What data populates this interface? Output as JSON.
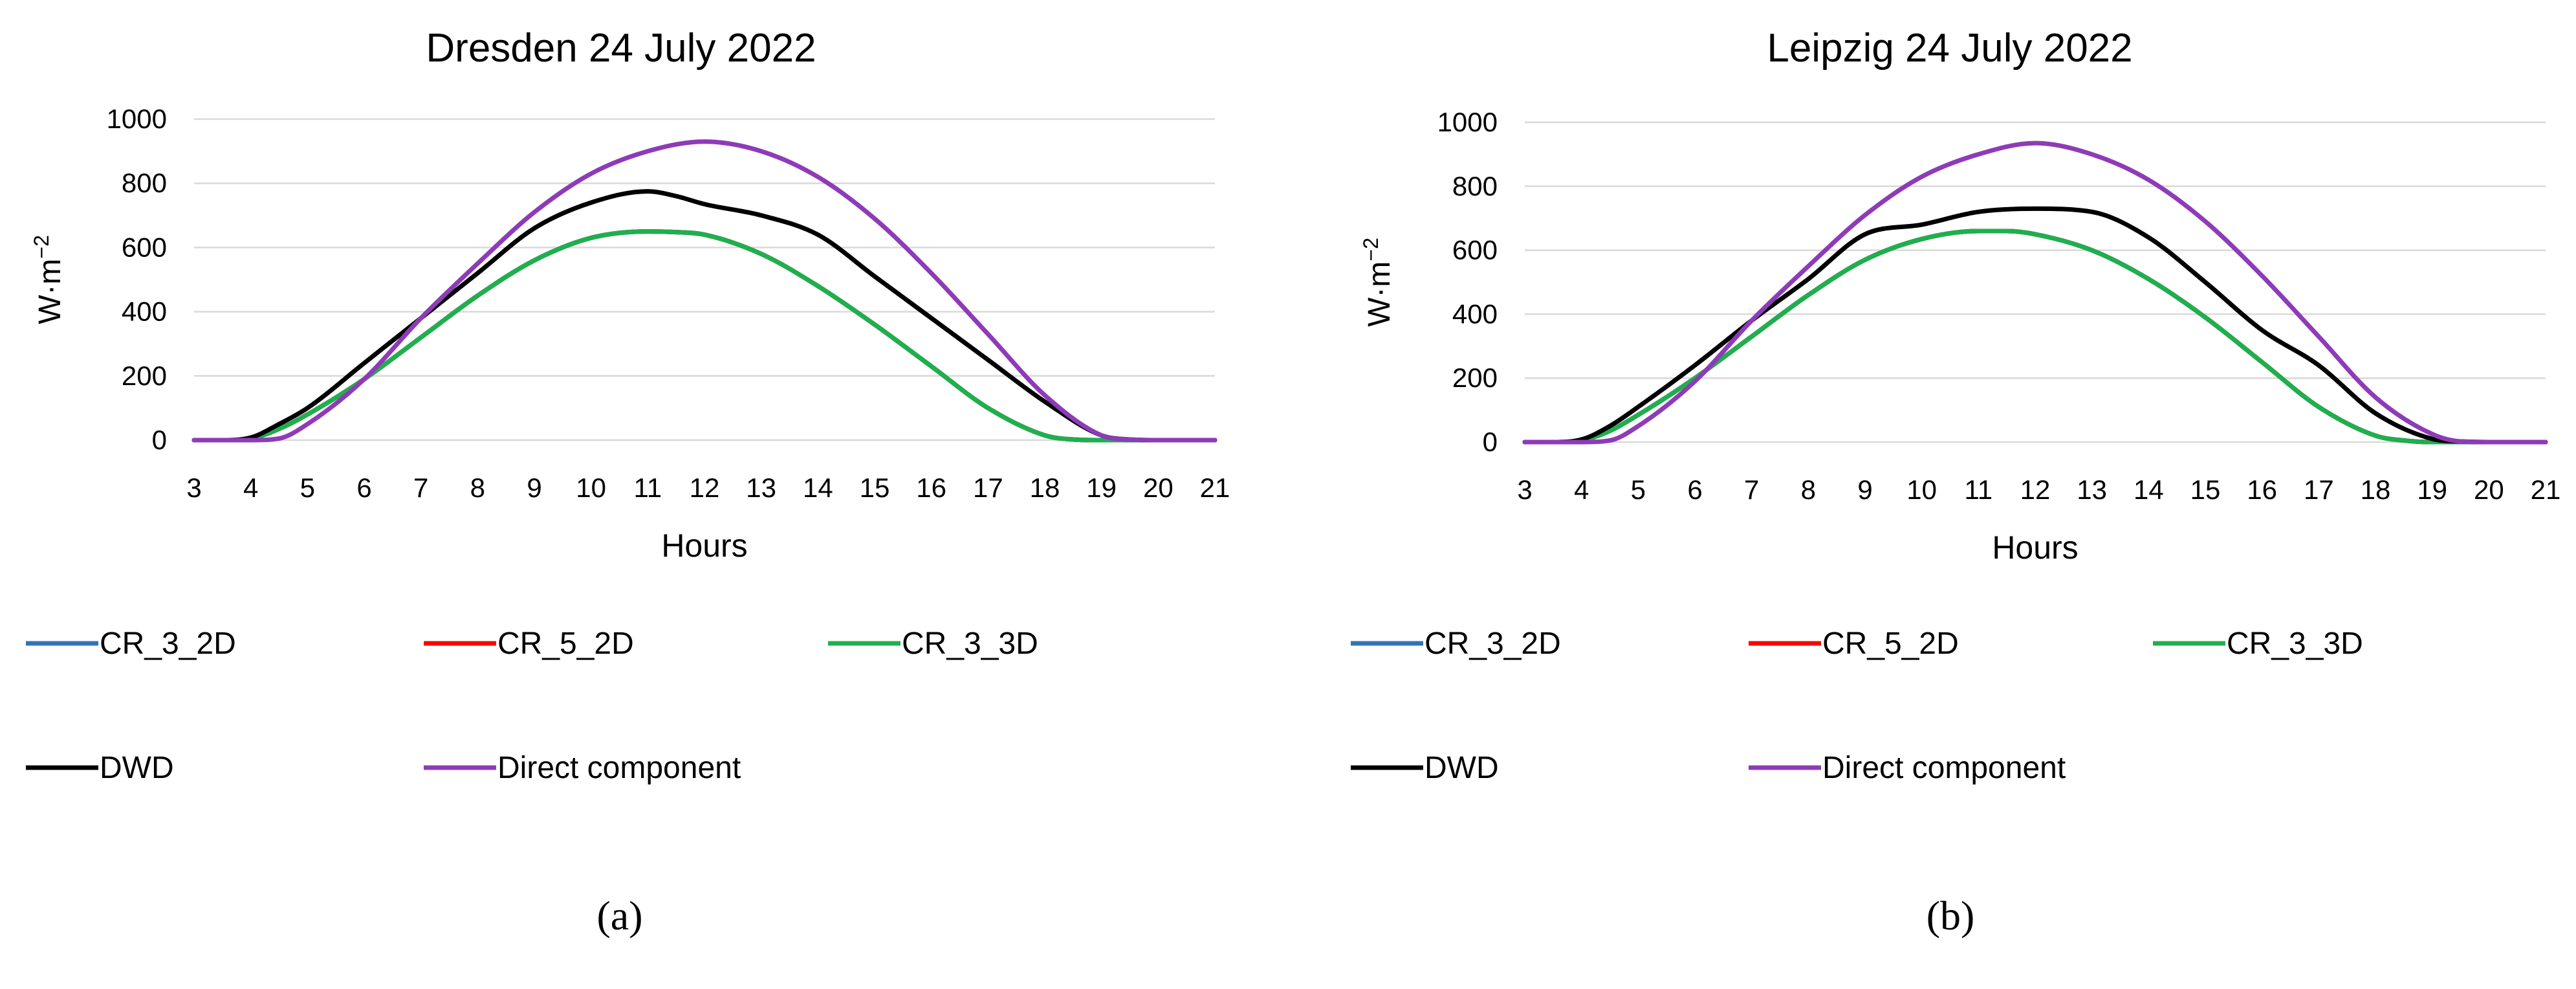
{
  "figure": {
    "captions": [
      "(a)",
      "(b)"
    ]
  },
  "colors": {
    "CR_3_2D": "#2E75B6",
    "CR_5_2D": "#FF0000",
    "CR_3_3D": "#1DB04E",
    "DWD": "#000000",
    "Direct component": "#8E3BB8",
    "grid": "#D9D9D9"
  },
  "chart_data": [
    {
      "type": "line",
      "title": "Dresden 24 July 2022",
      "xlabel": "Hours",
      "ylabel": "W·m",
      "ylabel_sup": "−2",
      "xlim": [
        3,
        21
      ],
      "ylim": [
        0,
        1000
      ],
      "xticks": [
        3,
        4,
        5,
        6,
        7,
        8,
        9,
        10,
        11,
        12,
        13,
        14,
        15,
        16,
        17,
        18,
        19,
        20,
        21
      ],
      "yticks": [
        0,
        200,
        400,
        600,
        800,
        1000
      ],
      "grid": "horizontal",
      "legend": "bottom",
      "series": [
        {
          "name": "CR_3_2D",
          "x": [
            3,
            3.5,
            4,
            4.5,
            5,
            6,
            7,
            8,
            9,
            10,
            11,
            11.5,
            12,
            13,
            14,
            15,
            16,
            17,
            18,
            18.5,
            19,
            19.5,
            20,
            21
          ],
          "y": [
            0,
            0,
            5,
            35,
            80,
            190,
            320,
            450,
            560,
            630,
            650,
            648,
            640,
            580,
            480,
            360,
            230,
            100,
            15,
            2,
            0,
            0,
            0,
            0
          ]
        },
        {
          "name": "CR_5_2D",
          "x": [
            3,
            3.5,
            4,
            4.5,
            5,
            6,
            7,
            8,
            9,
            10,
            11,
            11.5,
            12,
            13,
            14,
            15,
            16,
            17,
            18,
            18.5,
            19,
            19.5,
            20,
            21
          ],
          "y": [
            0,
            0,
            5,
            35,
            80,
            190,
            320,
            450,
            560,
            630,
            650,
            648,
            640,
            580,
            480,
            360,
            230,
            100,
            15,
            2,
            0,
            0,
            0,
            0
          ]
        },
        {
          "name": "CR_3_3D",
          "x": [
            3,
            3.5,
            4,
            4.5,
            5,
            6,
            7,
            8,
            9,
            10,
            11,
            11.5,
            12,
            13,
            14,
            15,
            16,
            17,
            18,
            18.5,
            19,
            19.5,
            20,
            21
          ],
          "y": [
            0,
            0,
            5,
            35,
            80,
            190,
            320,
            450,
            560,
            630,
            650,
            648,
            640,
            580,
            480,
            360,
            230,
            100,
            15,
            2,
            0,
            0,
            0,
            0
          ]
        },
        {
          "name": "DWD",
          "x": [
            3,
            3.5,
            4,
            4.5,
            5,
            6,
            7,
            8,
            9,
            10,
            11,
            11.5,
            12,
            13,
            14,
            15,
            16,
            17,
            18,
            19,
            19.5,
            20,
            21
          ],
          "y": [
            0,
            0,
            8,
            50,
            100,
            240,
            380,
            520,
            660,
            740,
            775,
            760,
            735,
            700,
            640,
            510,
            380,
            250,
            120,
            15,
            2,
            0,
            0
          ]
        },
        {
          "name": "Direct component",
          "x": [
            3,
            4,
            4.5,
            5,
            6,
            7,
            8,
            9,
            10,
            11,
            12,
            13,
            14,
            15,
            16,
            17,
            18,
            19,
            19.5,
            20,
            21
          ],
          "y": [
            0,
            0,
            5,
            50,
            190,
            380,
            550,
            710,
            830,
            900,
            930,
            900,
            820,
            690,
            520,
            330,
            140,
            15,
            2,
            0,
            0
          ]
        }
      ]
    },
    {
      "type": "line",
      "title": "Leipzig 24 July 2022",
      "xlabel": "Hours",
      "ylabel": "W·m",
      "ylabel_sup": "−2",
      "xlim": [
        3,
        21
      ],
      "ylim": [
        0,
        1000
      ],
      "xticks": [
        3,
        4,
        5,
        6,
        7,
        8,
        9,
        10,
        11,
        12,
        13,
        14,
        15,
        16,
        17,
        18,
        19,
        20,
        21
      ],
      "yticks": [
        0,
        200,
        400,
        600,
        800,
        1000
      ],
      "grid": "horizontal",
      "legend": "bottom",
      "series": [
        {
          "name": "CR_3_2D",
          "x": [
            3,
            3.5,
            4,
            4.5,
            5,
            6,
            7,
            8,
            9,
            10,
            11,
            11.5,
            12,
            13,
            14,
            15,
            16,
            17,
            18,
            18.5,
            19,
            19.5,
            20,
            21
          ],
          "y": [
            0,
            0,
            5,
            35,
            85,
            200,
            330,
            460,
            570,
            635,
            660,
            660,
            650,
            600,
            510,
            390,
            250,
            110,
            20,
            5,
            0,
            0,
            0,
            0
          ]
        },
        {
          "name": "CR_5_2D",
          "x": [
            3,
            3.5,
            4,
            4.5,
            5,
            6,
            7,
            8,
            9,
            10,
            11,
            11.5,
            12,
            13,
            14,
            15,
            16,
            17,
            18,
            18.5,
            19,
            19.5,
            20,
            21
          ],
          "y": [
            0,
            0,
            5,
            35,
            85,
            200,
            330,
            460,
            570,
            635,
            660,
            660,
            650,
            600,
            510,
            390,
            250,
            110,
            20,
            5,
            0,
            0,
            0,
            0
          ]
        },
        {
          "name": "CR_3_3D",
          "x": [
            3,
            3.5,
            4,
            4.5,
            5,
            6,
            7,
            8,
            9,
            10,
            11,
            11.5,
            12,
            13,
            14,
            15,
            16,
            17,
            18,
            18.5,
            19,
            19.5,
            20,
            21
          ],
          "y": [
            0,
            0,
            5,
            35,
            85,
            200,
            330,
            460,
            570,
            635,
            660,
            660,
            650,
            600,
            510,
            390,
            250,
            110,
            20,
            5,
            0,
            0,
            0,
            0
          ]
        },
        {
          "name": "DWD",
          "x": [
            3,
            3.5,
            4,
            4.5,
            5,
            6,
            7,
            8,
            9,
            10,
            11,
            12,
            13,
            14,
            15,
            16,
            17,
            18,
            19,
            19.5,
            20,
            21
          ],
          "y": [
            0,
            0,
            8,
            50,
            110,
            240,
            380,
            510,
            650,
            680,
            720,
            730,
            720,
            640,
            500,
            350,
            240,
            90,
            10,
            2,
            0,
            0
          ]
        },
        {
          "name": "Direct component",
          "x": [
            3,
            4,
            4.5,
            5,
            6,
            7,
            8,
            9,
            10,
            11,
            12,
            13,
            14,
            15,
            16,
            17,
            18,
            19,
            19.5,
            20,
            21
          ],
          "y": [
            0,
            0,
            5,
            50,
            190,
            380,
            550,
            710,
            830,
            900,
            935,
            900,
            820,
            690,
            520,
            330,
            140,
            25,
            2,
            0,
            0
          ]
        }
      ]
    }
  ]
}
